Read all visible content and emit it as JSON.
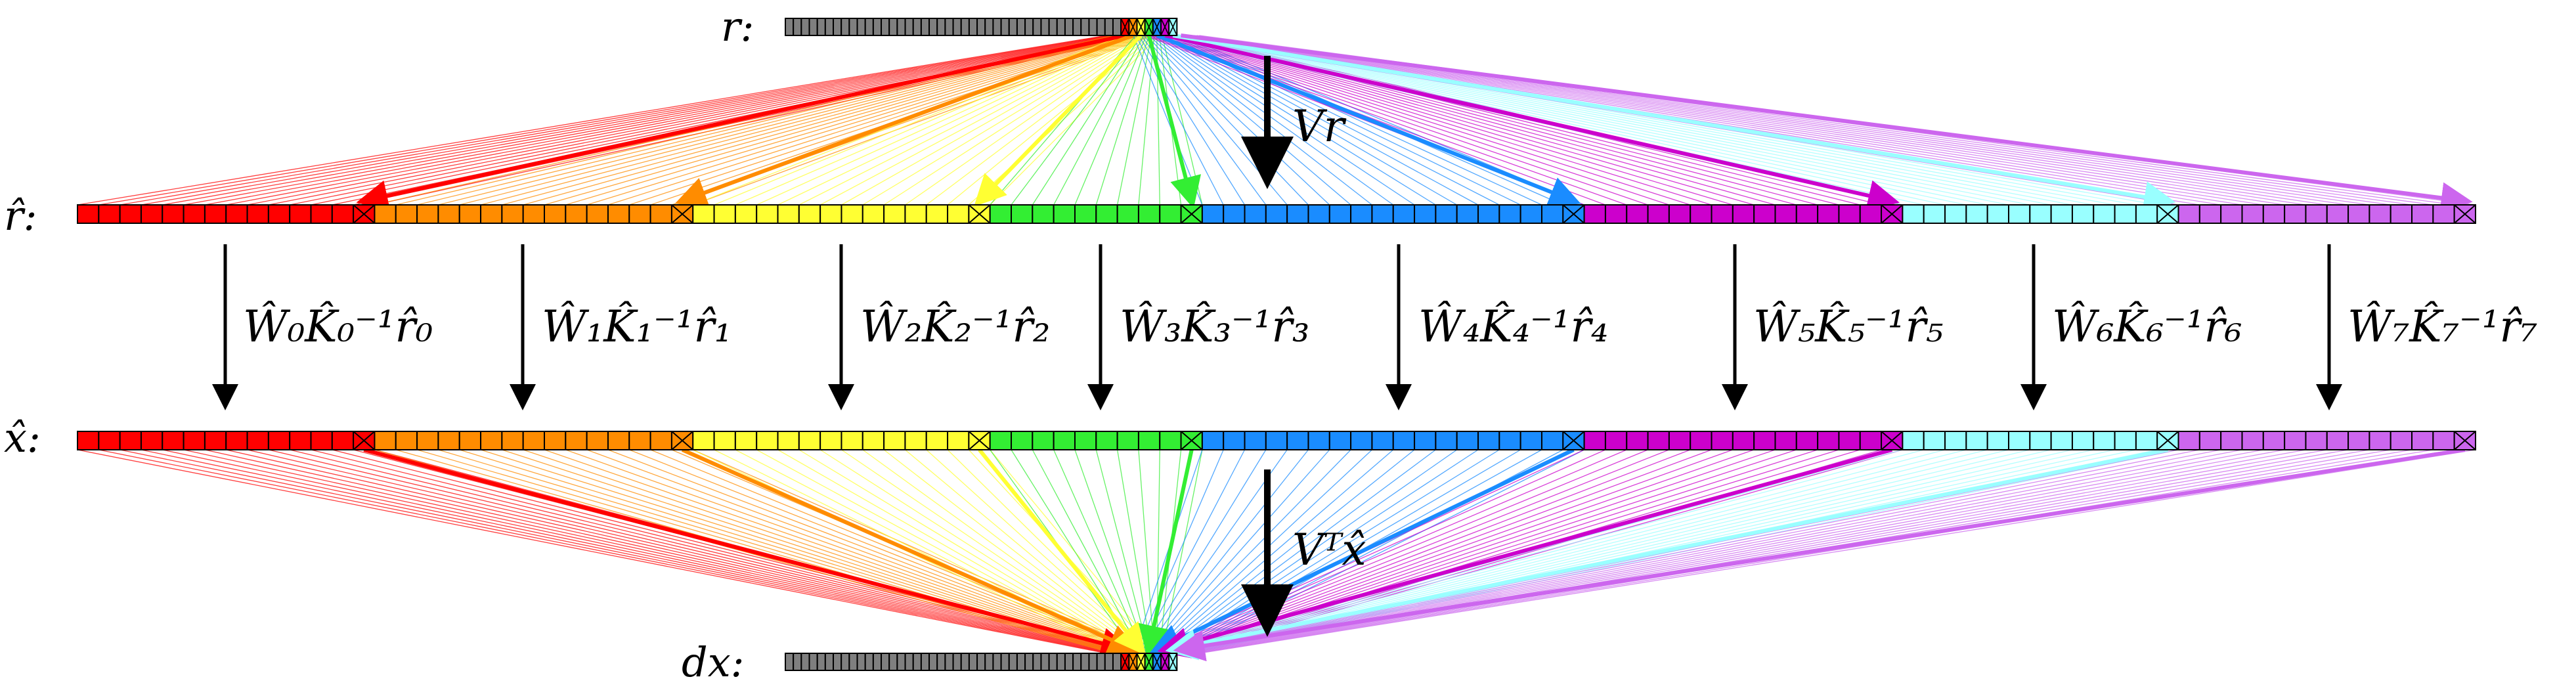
{
  "colors": {
    "gray": "#7f7f7f",
    "groups": [
      "#ff0000",
      "#ff8c00",
      "#ffff33",
      "#33ee33",
      "#1a8cff",
      "#cc00cc",
      "#99ffff",
      "#cc66ee"
    ],
    "black": "#000000"
  },
  "labels": {
    "r": "r:",
    "r_hat": "r̂:",
    "x_hat": "x̂:",
    "dx": "dx:",
    "vr": "Vr",
    "vtx": "Vᵀx̂"
  },
  "operators": [
    {
      "name": "op-0",
      "text": "Ŵ₀K̂₀⁻¹r̂₀"
    },
    {
      "name": "op-1",
      "text": "Ŵ₁K̂₁⁻¹r̂₁"
    },
    {
      "name": "op-2",
      "text": "Ŵ₂K̂₂⁻¹r̂₂"
    },
    {
      "name": "op-3",
      "text": "Ŵ₃K̂₃⁻¹r̂₃"
    },
    {
      "name": "op-4",
      "text": "Ŵ₄K̂₄⁻¹r̂₄"
    },
    {
      "name": "op-5",
      "text": "Ŵ₅K̂₅⁻¹r̂₅"
    },
    {
      "name": "op-6",
      "text": "Ŵ₆K̂₆⁻¹r̂₆"
    },
    {
      "name": "op-7",
      "text": "Ŵ₇K̂₇⁻¹r̂₇"
    }
  ],
  "structure": {
    "short_gray_cells": 42,
    "short_colored_cells": 7,
    "long_group_cells": [
      14,
      15,
      14,
      10,
      18,
      15,
      13,
      14
    ]
  }
}
